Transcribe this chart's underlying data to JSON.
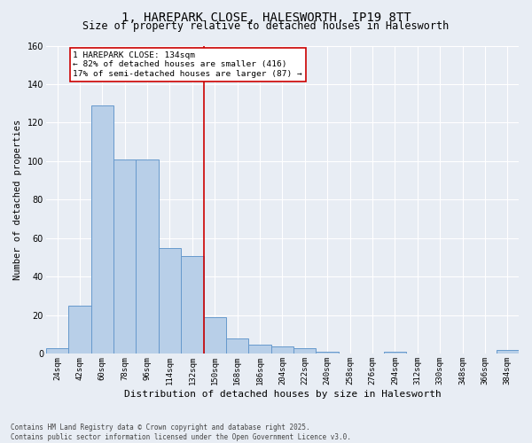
{
  "title_line1": "1, HAREPARK CLOSE, HALESWORTH, IP19 8TT",
  "title_line2": "Size of property relative to detached houses in Halesworth",
  "xlabel": "Distribution of detached houses by size in Halesworth",
  "ylabel": "Number of detached properties",
  "categories": [
    "24sqm",
    "42sqm",
    "60sqm",
    "78sqm",
    "96sqm",
    "114sqm",
    "132sqm",
    "150sqm",
    "168sqm",
    "186sqm",
    "204sqm",
    "222sqm",
    "240sqm",
    "258sqm",
    "276sqm",
    "294sqm",
    "312sqm",
    "330sqm",
    "348sqm",
    "366sqm",
    "384sqm"
  ],
  "values": [
    3,
    25,
    129,
    101,
    101,
    55,
    51,
    19,
    8,
    5,
    4,
    3,
    1,
    0,
    0,
    1,
    0,
    0,
    0,
    0,
    2
  ],
  "bar_color": "#b8cfe8",
  "bar_edge_color": "#6699cc",
  "bg_color": "#e8edf4",
  "grid_color": "#ffffff",
  "vline_color": "#cc0000",
  "annotation_text": "1 HAREPARK CLOSE: 134sqm\n← 82% of detached houses are smaller (416)\n17% of semi-detached houses are larger (87) →",
  "annotation_box_color": "#cc0000",
  "ylim": [
    0,
    160
  ],
  "yticks": [
    0,
    20,
    40,
    60,
    80,
    100,
    120,
    140,
    160
  ],
  "footnote_line1": "Contains HM Land Registry data © Crown copyright and database right 2025.",
  "footnote_line2": "Contains public sector information licensed under the Open Government Licence v3.0."
}
